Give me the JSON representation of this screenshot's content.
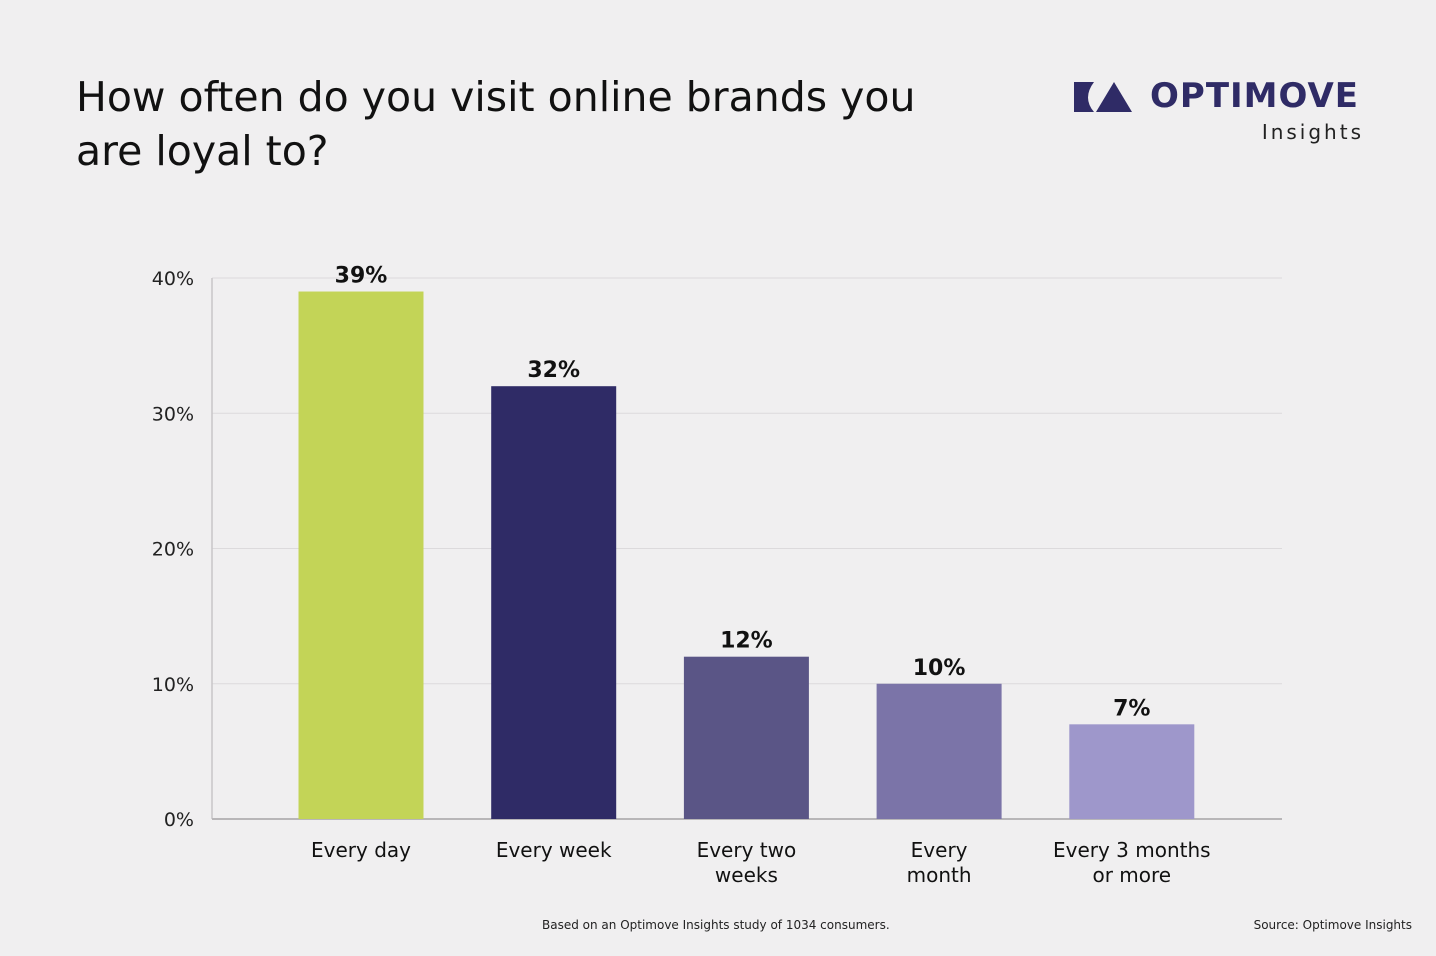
{
  "title": "How often do you visit online brands you are loyal to?",
  "logo": {
    "text": "OPTIMOVE",
    "subtext": "Insights",
    "color": "#2f2b66"
  },
  "footnote": "Based on an Optimove Insights study of 1034 consumers.",
  "source": "Source: Optimove Insights",
  "chart_data": {
    "type": "bar",
    "title": "How often do you visit online brands you are loyal to?",
    "categories": [
      [
        "Every day"
      ],
      [
        "Every week"
      ],
      [
        "Every two",
        "weeks"
      ],
      [
        "Every",
        "month"
      ],
      [
        "Every 3 months",
        "or more"
      ]
    ],
    "values": [
      39,
      32,
      12,
      10,
      7
    ],
    "data_labels": [
      "39%",
      "32%",
      "12%",
      "10%",
      "7%"
    ],
    "colors": [
      "#c3d457",
      "#2f2b66",
      "#5a5586",
      "#7b74a8",
      "#9e97cb"
    ],
    "yticks": [
      0,
      10,
      20,
      30,
      40
    ],
    "ytick_labels": [
      "0%",
      "10%",
      "20%",
      "30%",
      "40%"
    ],
    "ylim": [
      0,
      40
    ],
    "grid": true,
    "xlabel": "",
    "ylabel": ""
  }
}
